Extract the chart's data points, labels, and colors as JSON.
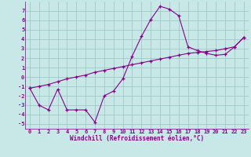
{
  "xlabel": "Windchill (Refroidissement éolien,°C)",
  "bg_color": "#c8e8e8",
  "grid_color": "#a0c8c8",
  "line_color": "#880088",
  "x_values": [
    0,
    1,
    2,
    3,
    4,
    5,
    6,
    7,
    8,
    9,
    10,
    11,
    12,
    13,
    14,
    15,
    16,
    17,
    18,
    19,
    20,
    21,
    22,
    23
  ],
  "y_line1": [
    -1.2,
    -3.0,
    -3.5,
    -1.3,
    -3.5,
    -3.5,
    -3.5,
    -4.8,
    -2.0,
    -1.5,
    -0.2,
    2.2,
    4.3,
    6.1,
    7.5,
    7.2,
    6.5,
    3.2,
    2.8,
    2.5,
    2.3,
    2.4,
    3.2,
    4.2
  ],
  "y_line2": [
    -1.2,
    -1.0,
    -0.8,
    -0.5,
    -0.2,
    0.0,
    0.2,
    0.5,
    0.7,
    0.9,
    1.1,
    1.3,
    1.5,
    1.7,
    1.9,
    2.1,
    2.3,
    2.5,
    2.6,
    2.7,
    2.8,
    3.0,
    3.2,
    4.2
  ],
  "xlim": [
    -0.5,
    23.5
  ],
  "ylim": [
    -5.5,
    8.0
  ],
  "yticks": [
    -5,
    -4,
    -3,
    -2,
    -1,
    0,
    1,
    2,
    3,
    4,
    5,
    6,
    7
  ],
  "xticks": [
    0,
    1,
    2,
    3,
    4,
    5,
    6,
    7,
    8,
    9,
    10,
    11,
    12,
    13,
    14,
    15,
    16,
    17,
    18,
    19,
    20,
    21,
    22,
    23
  ],
  "xlabel_fontsize": 5.5,
  "tick_fontsize": 5.0
}
